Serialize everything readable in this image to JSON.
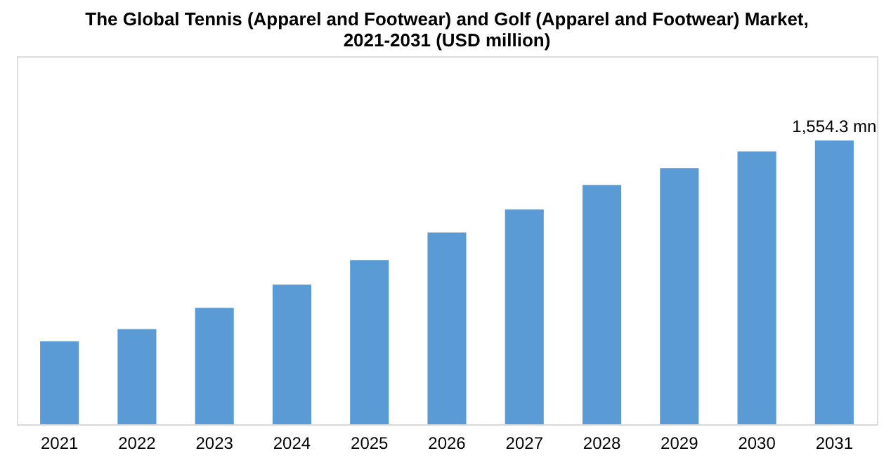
{
  "chart_data": {
    "type": "bar",
    "title": [
      "The Global Tennis (Apparel and Footwear) and Golf (Apparel and Footwear) Market,",
      "2021-2031 (USD million)"
    ],
    "categories": [
      "2021",
      "2022",
      "2023",
      "2024",
      "2025",
      "2026",
      "2027",
      "2028",
      "2029",
      "2030",
      "2031"
    ],
    "values": [
      454,
      521,
      638,
      765,
      899,
      1050,
      1176,
      1311,
      1403,
      1495,
      1554.3
    ],
    "value_labels": [
      null,
      null,
      null,
      null,
      null,
      null,
      null,
      null,
      null,
      null,
      "1,554.3 mn"
    ],
    "color": "#5b9bd5",
    "ylim": [
      0,
      2016
    ],
    "grid": false,
    "tick_labels": "x"
  }
}
